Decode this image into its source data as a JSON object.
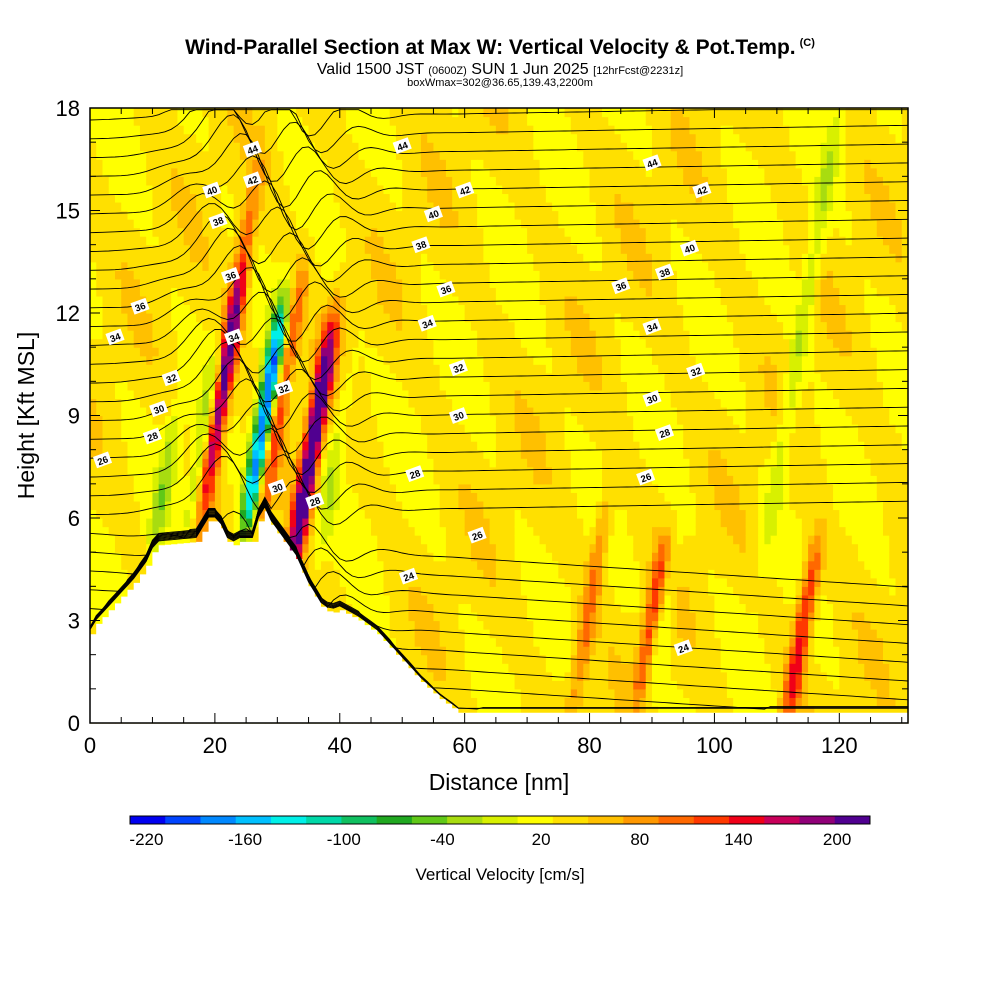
{
  "header": {
    "title": "Wind-Parallel Section at Max W: Vertical Velocity & Pot.Temp.",
    "copyright": "(C)",
    "valid_prefix": "Valid 1500 JST",
    "valid_zulu": "(0600Z)",
    "valid_date": "SUN 1 Jun 2025",
    "forecast": "[12hrFcst@2231z]",
    "boxwmax": "boxWmax=302@36.65,139.43,2200m"
  },
  "colors": {
    "bins": [
      "#0000f0",
      "#0044ff",
      "#0088ff",
      "#00c0ff",
      "#00f0e8",
      "#00d8a8",
      "#10c060",
      "#20a820",
      "#60c818",
      "#a8dc10",
      "#d8f000",
      "#ffff00",
      "#ffe000",
      "#ffc000",
      "#ff9800",
      "#ff6800",
      "#ff3800",
      "#f00018",
      "#c8005a",
      "#900078",
      "#500090"
    ],
    "contour": "#000000"
  },
  "chart_data": {
    "type": "heatmap",
    "xlabel": "Distance [nm]",
    "ylabel": "Height [Kft MSL]",
    "xlim": [
      0,
      131
    ],
    "ylim": [
      0,
      18
    ],
    "x_ticks": [
      0,
      20,
      40,
      60,
      80,
      100,
      120
    ],
    "y_ticks": [
      0,
      3,
      6,
      9,
      12,
      15,
      18
    ],
    "colorbar": {
      "label": "Vertical Velocity [cm/s]",
      "ticks": [
        -220,
        -160,
        -100,
        -40,
        20,
        80,
        140,
        200
      ],
      "range": [
        -230,
        220
      ],
      "step": 20
    },
    "vertical_velocity_features": [
      {
        "x": 12,
        "z_range": [
          5.2,
          9
        ],
        "w": -50
      },
      {
        "x": 18.5,
        "z_range": [
          6,
          11
        ],
        "w": -60
      },
      {
        "x": 21,
        "z_range": [
          6,
          13
        ],
        "w": 120
      },
      {
        "x": 23,
        "z_range": [
          8,
          16
        ],
        "w": 70
      },
      {
        "x": 28,
        "z_range": [
          6,
          12
        ],
        "w": -220
      },
      {
        "x": 30.5,
        "z_range": [
          6,
          13
        ],
        "w": 90
      },
      {
        "x": 35.5,
        "z_range": [
          4.5,
          11.5
        ],
        "w": 200
      },
      {
        "x": 39,
        "z_range": [
          5,
          10
        ],
        "w": -40
      },
      {
        "x": 80,
        "z_range": [
          0.3,
          6.5
        ],
        "w": 60
      },
      {
        "x": 90,
        "z_range": [
          1,
          5
        ],
        "w": 90
      },
      {
        "x": 91.5,
        "z_range": [
          1,
          5
        ],
        "w": -40
      },
      {
        "x": 114,
        "z_range": [
          0.3,
          5
        ],
        "w": 110
      },
      {
        "x": 114,
        "z_range": [
          5,
          18
        ],
        "w": -45
      }
    ],
    "theta_contours": {
      "levels": [
        24,
        26,
        28,
        30,
        32,
        34,
        36,
        38,
        40,
        42,
        44
      ],
      "labels": [
        {
          "text": "26",
          "x": 2,
          "z": 7.7
        },
        {
          "text": "28",
          "x": 10,
          "z": 8.4
        },
        {
          "text": "30",
          "x": 11,
          "z": 9.2
        },
        {
          "text": "32",
          "x": 13,
          "z": 10.1
        },
        {
          "text": "34",
          "x": 4,
          "z": 11.3
        },
        {
          "text": "36",
          "x": 8,
          "z": 12.2
        },
        {
          "text": "38",
          "x": 20.5,
          "z": 14.7
        },
        {
          "text": "40",
          "x": 19.5,
          "z": 15.6
        },
        {
          "text": "42",
          "x": 26,
          "z": 15.9
        },
        {
          "text": "44",
          "x": 26,
          "z": 16.8
        },
        {
          "text": "36",
          "x": 22.5,
          "z": 13.1
        },
        {
          "text": "34",
          "x": 23,
          "z": 11.3
        },
        {
          "text": "32",
          "x": 31,
          "z": 9.8
        },
        {
          "text": "30",
          "x": 30,
          "z": 6.9
        },
        {
          "text": "28",
          "x": 36,
          "z": 6.5
        },
        {
          "text": "44",
          "x": 50,
          "z": 16.9
        },
        {
          "text": "42",
          "x": 60,
          "z": 15.6
        },
        {
          "text": "40",
          "x": 55,
          "z": 14.9
        },
        {
          "text": "38",
          "x": 53,
          "z": 14.0
        },
        {
          "text": "36",
          "x": 57,
          "z": 12.7
        },
        {
          "text": "34",
          "x": 54,
          "z": 11.7
        },
        {
          "text": "32",
          "x": 59,
          "z": 10.4
        },
        {
          "text": "30",
          "x": 59,
          "z": 9.0
        },
        {
          "text": "28",
          "x": 52,
          "z": 7.3
        },
        {
          "text": "26",
          "x": 62,
          "z": 5.5
        },
        {
          "text": "24",
          "x": 51,
          "z": 4.3
        },
        {
          "text": "44",
          "x": 90,
          "z": 16.4
        },
        {
          "text": "42",
          "x": 98,
          "z": 15.6
        },
        {
          "text": "40",
          "x": 96,
          "z": 13.9
        },
        {
          "text": "38",
          "x": 92,
          "z": 13.2
        },
        {
          "text": "36",
          "x": 85,
          "z": 12.8
        },
        {
          "text": "34",
          "x": 90,
          "z": 11.6
        },
        {
          "text": "32",
          "x": 97,
          "z": 10.3
        },
        {
          "text": "30",
          "x": 90,
          "z": 9.5
        },
        {
          "text": "28",
          "x": 92,
          "z": 8.5
        },
        {
          "text": "26",
          "x": 89,
          "z": 7.2
        },
        {
          "text": "24",
          "x": 95,
          "z": 2.2
        }
      ]
    }
  }
}
